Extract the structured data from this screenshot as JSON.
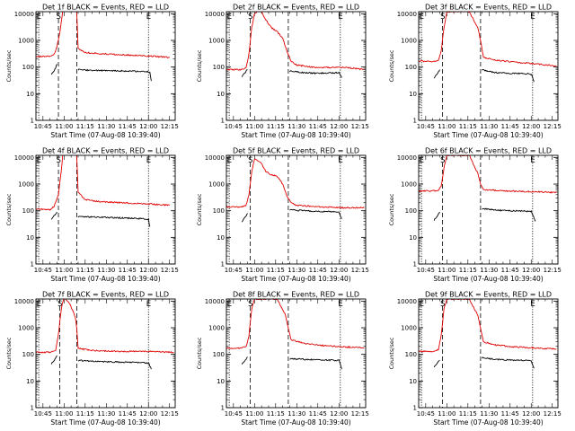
{
  "colors": {
    "events": "#000000",
    "lld": "#e00000",
    "axes": "#000000",
    "background": "#ffffff"
  },
  "chart_data": [
    {
      "type": "line",
      "scale": "log",
      "title": "Det 1f BLACK = Events, RED = LLD",
      "xlabel": "Start Time (07-Aug-08 10:39:40)",
      "ylabel": "Counts/sec",
      "xlim": [
        "10:40",
        "12:19"
      ],
      "ylim": [
        1,
        12000
      ],
      "x_ticks": [
        "10:45",
        "11:00",
        "11:15",
        "11:30",
        "11:45",
        "12:00",
        "12:15"
      ],
      "y_ticks": [
        "1",
        "10",
        "100",
        "1000",
        "10000"
      ],
      "markers": [
        {
          "label": "E",
          "time": "10:42"
        },
        {
          "label": "S",
          "time": "10:56"
        },
        {
          "label": "",
          "time": "11:09"
        },
        {
          "label": "E",
          "time": "12:00"
        }
      ],
      "series": [
        {
          "name": "Events",
          "color": "#000000",
          "x": [
            "10:51",
            "10:53",
            "10:55"
          ],
          "y": [
            55,
            70,
            130
          ]
        },
        {
          "name": "Events",
          "color": "#000000",
          "x": [
            "11:10",
            "11:20",
            "11:35",
            "11:50",
            "12:01",
            "12:02"
          ],
          "y": [
            80,
            75,
            72,
            70,
            65,
            30
          ]
        },
        {
          "name": "LLD",
          "color": "#e00000",
          "x": [
            "10:40",
            "10:51",
            "10:53",
            "10:55",
            "10:57",
            "10:59"
          ],
          "y": [
            250,
            250,
            300,
            600,
            2000,
            12000
          ]
        },
        {
          "name": "LLD",
          "color": "#e00000",
          "x": [
            "11:09",
            "11:10",
            "11:15",
            "11:25",
            "11:40",
            "12:00",
            "12:15"
          ],
          "y": [
            12000,
            500,
            350,
            320,
            290,
            260,
            230
          ]
        }
      ]
    },
    {
      "type": "line",
      "scale": "log",
      "title": "Det 2f BLACK = Events, RED = LLD",
      "xlabel": "Start Time (07-Aug-08 10:39:40)",
      "ylabel": "Counts/sec",
      "xlim": [
        "10:40",
        "12:19"
      ],
      "ylim": [
        1,
        12000
      ],
      "x_ticks": [
        "10:45",
        "11:00",
        "11:15",
        "11:30",
        "11:45",
        "12:00",
        "12:15"
      ],
      "y_ticks": [
        "1",
        "10",
        "100",
        "1000",
        "10000"
      ],
      "markers": [
        {
          "label": "E",
          "time": "10:42"
        },
        {
          "label": "S",
          "time": "10:57"
        },
        {
          "label": "",
          "time": "11:24"
        },
        {
          "label": "E",
          "time": "12:01"
        }
      ],
      "series": [
        {
          "name": "Events",
          "color": "#000000",
          "x": [
            "10:51",
            "10:53",
            "10:55"
          ],
          "y": [
            45,
            60,
            80
          ]
        },
        {
          "name": "Events",
          "color": "#000000",
          "x": [
            "11:25",
            "11:35",
            "11:45",
            "12:00",
            "12:02"
          ],
          "y": [
            70,
            62,
            58,
            62,
            40
          ]
        },
        {
          "name": "LLD",
          "color": "#e00000",
          "x": [
            "10:40",
            "10:50",
            "10:54",
            "10:56",
            "10:58",
            "11:00",
            "11:04",
            "11:08",
            "11:12",
            "11:16",
            "11:20",
            "11:23",
            "11:26",
            "11:30",
            "11:40",
            "11:50",
            "12:00",
            "12:10",
            "12:18"
          ],
          "y": [
            80,
            80,
            95,
            300,
            3000,
            10000,
            14000,
            6000,
            3000,
            2200,
            1200,
            400,
            160,
            120,
            100,
            95,
            100,
            90,
            80
          ]
        }
      ]
    },
    {
      "type": "line",
      "scale": "log",
      "title": "Det 3f BLACK = Events, RED = LLD",
      "xlabel": "Start Time (07-Aug-08 10:39:40)",
      "ylabel": "Counts/sec",
      "xlim": [
        "10:40",
        "12:19"
      ],
      "ylim": [
        1,
        12000
      ],
      "x_ticks": [
        "10:45",
        "11:00",
        "11:15",
        "11:30",
        "11:45",
        "12:00",
        "12:15"
      ],
      "y_ticks": [
        "1",
        "10",
        "100",
        "1000",
        "10000"
      ],
      "markers": [
        {
          "label": "E",
          "time": "10:42"
        },
        {
          "label": "S",
          "time": "10:57"
        },
        {
          "label": "",
          "time": "11:24"
        },
        {
          "label": "E",
          "time": "12:01"
        }
      ],
      "series": [
        {
          "name": "Events",
          "color": "#000000",
          "x": [
            "10:51",
            "10:53",
            "10:55"
          ],
          "y": [
            40,
            55,
            80
          ]
        },
        {
          "name": "Events",
          "color": "#000000",
          "x": [
            "11:25",
            "11:35",
            "11:45",
            "12:00",
            "12:02"
          ],
          "y": [
            80,
            62,
            58,
            55,
            28
          ]
        },
        {
          "name": "LLD",
          "color": "#e00000",
          "x": [
            "10:40",
            "10:50",
            "10:54",
            "10:56",
            "10:58",
            "11:00",
            "11:08",
            "11:16",
            "11:22",
            "11:24",
            "11:26",
            "11:35",
            "11:50",
            "12:05",
            "12:18"
          ],
          "y": [
            170,
            160,
            170,
            400,
            3000,
            12000,
            12000,
            12000,
            3000,
            1000,
            230,
            180,
            150,
            130,
            110
          ]
        }
      ]
    },
    {
      "type": "line",
      "scale": "log",
      "title": "Det 4f BLACK = Events, RED = LLD",
      "xlabel": "Start Time (07-Aug-08 10:39:40)",
      "ylabel": "Counts/sec",
      "xlim": [
        "10:40",
        "12:19"
      ],
      "ylim": [
        1,
        12000
      ],
      "x_ticks": [
        "10:45",
        "11:00",
        "11:15",
        "11:30",
        "11:45",
        "12:00",
        "12:15"
      ],
      "y_ticks": [
        "1",
        "10",
        "100",
        "1000",
        "10000"
      ],
      "markers": [
        {
          "label": "E",
          "time": "10:42"
        },
        {
          "label": "S",
          "time": "10:56"
        },
        {
          "label": "",
          "time": "11:09"
        },
        {
          "label": "E",
          "time": "12:00"
        }
      ],
      "series": [
        {
          "name": "Events",
          "color": "#000000",
          "x": [
            "10:51",
            "10:53",
            "10:55"
          ],
          "y": [
            50,
            65,
            90
          ]
        },
        {
          "name": "Events",
          "color": "#000000",
          "x": [
            "11:10",
            "11:20",
            "11:35",
            "11:50",
            "12:00",
            "12:01"
          ],
          "y": [
            60,
            58,
            55,
            52,
            48,
            25
          ]
        },
        {
          "name": "LLD",
          "color": "#e00000",
          "x": [
            "10:40",
            "10:50",
            "10:53",
            "10:56",
            "10:58",
            "10:59"
          ],
          "y": [
            120,
            110,
            150,
            400,
            3000,
            12000
          ]
        },
        {
          "name": "LLD",
          "color": "#e00000",
          "x": [
            "11:09",
            "11:10",
            "11:15",
            "11:25",
            "11:40",
            "12:00",
            "12:15"
          ],
          "y": [
            12000,
            500,
            260,
            220,
            200,
            180,
            160
          ]
        }
      ]
    },
    {
      "type": "line",
      "scale": "log",
      "title": "Det 5f BLACK = Events, RED = LLD",
      "xlabel": "Start Time (07-Aug-08 10:39:40)",
      "ylabel": "Counts/sec",
      "xlim": [
        "10:40",
        "12:19"
      ],
      "ylim": [
        1,
        12000
      ],
      "x_ticks": [
        "10:45",
        "11:00",
        "11:15",
        "11:30",
        "11:45",
        "12:00",
        "12:15"
      ],
      "y_ticks": [
        "1",
        "10",
        "100",
        "1000",
        "10000"
      ],
      "markers": [
        {
          "label": "E",
          "time": "10:42"
        },
        {
          "label": "S",
          "time": "10:57"
        },
        {
          "label": "",
          "time": "11:24"
        },
        {
          "label": "E",
          "time": "12:01"
        }
      ],
      "series": [
        {
          "name": "Events",
          "color": "#000000",
          "x": [
            "10:51",
            "10:53",
            "10:55"
          ],
          "y": [
            40,
            55,
            80
          ]
        },
        {
          "name": "Events",
          "color": "#000000",
          "x": [
            "11:25",
            "11:35",
            "11:45",
            "12:00",
            "12:02"
          ],
          "y": [
            110,
            100,
            95,
            90,
            50
          ]
        },
        {
          "name": "LLD",
          "color": "#e00000",
          "x": [
            "10:40",
            "10:50",
            "10:54",
            "10:56",
            "10:58",
            "11:00",
            "11:04",
            "11:08",
            "11:12",
            "11:16",
            "11:20",
            "11:23",
            "11:26",
            "11:30",
            "11:45",
            "12:00",
            "12:18"
          ],
          "y": [
            140,
            140,
            160,
            400,
            3000,
            9000,
            7000,
            3000,
            2200,
            2000,
            1000,
            350,
            200,
            160,
            140,
            130,
            130
          ]
        }
      ]
    },
    {
      "type": "line",
      "scale": "log",
      "title": "Det 6f BLACK = Events, RED = LLD",
      "xlabel": "Start Time (07-Aug-08 10:39:40)",
      "ylabel": "Counts/sec",
      "xlim": [
        "10:40",
        "12:19"
      ],
      "ylim": [
        1,
        12000
      ],
      "x_ticks": [
        "10:45",
        "11:00",
        "11:15",
        "11:30",
        "11:45",
        "12:00",
        "12:15"
      ],
      "y_ticks": [
        "1",
        "10",
        "100",
        "1000",
        "10000"
      ],
      "markers": [
        {
          "label": "E",
          "time": "10:42"
        },
        {
          "label": "S",
          "time": "10:57"
        },
        {
          "label": "",
          "time": "11:24"
        },
        {
          "label": "E",
          "time": "12:01"
        }
      ],
      "series": [
        {
          "name": "Events",
          "color": "#000000",
          "x": [
            "10:51",
            "10:53",
            "10:55"
          ],
          "y": [
            45,
            60,
            90
          ]
        },
        {
          "name": "Events",
          "color": "#000000",
          "x": [
            "11:25",
            "11:35",
            "11:45",
            "12:00",
            "12:03"
          ],
          "y": [
            120,
            105,
            100,
            95,
            40
          ]
        },
        {
          "name": "LLD",
          "color": "#e00000",
          "x": [
            "10:40",
            "10:50",
            "10:54",
            "10:56",
            "10:58",
            "11:00",
            "11:08",
            "11:16",
            "11:22",
            "11:24",
            "11:26",
            "11:40",
            "12:00",
            "12:18"
          ],
          "y": [
            550,
            550,
            600,
            800,
            4000,
            12000,
            12000,
            12000,
            2500,
            1000,
            620,
            560,
            520,
            480
          ]
        }
      ]
    },
    {
      "type": "line",
      "scale": "log",
      "title": "Det 7f BLACK = Events, RED = LLD",
      "xlabel": "Start Time (07-Aug-08 10:39:40)",
      "ylabel": "Counts/sec",
      "xlim": [
        "10:40",
        "12:19"
      ],
      "ylim": [
        1,
        12000
      ],
      "x_ticks": [
        "10:45",
        "11:00",
        "11:15",
        "11:30",
        "11:45",
        "12:00",
        "12:15"
      ],
      "y_ticks": [
        "1",
        "10",
        "100",
        "1000",
        "10000"
      ],
      "markers": [
        {
          "label": "E",
          "time": "10:42"
        },
        {
          "label": "S",
          "time": "10:57"
        },
        {
          "label": "",
          "time": "11:09"
        },
        {
          "label": "E",
          "time": "12:00"
        }
      ],
      "series": [
        {
          "name": "Events",
          "color": "#000000",
          "x": [
            "10:51",
            "10:53",
            "10:55"
          ],
          "y": [
            45,
            60,
            90
          ]
        },
        {
          "name": "Events",
          "color": "#000000",
          "x": [
            "11:10",
            "11:20",
            "11:35",
            "11:50",
            "12:00",
            "12:02"
          ],
          "y": [
            60,
            55,
            52,
            50,
            48,
            28
          ]
        },
        {
          "name": "LLD",
          "color": "#e00000",
          "x": [
            "10:40",
            "10:50",
            "10:54",
            "10:56",
            "10:58",
            "11:00",
            "11:04",
            "11:08",
            "11:09",
            "11:10",
            "11:20",
            "11:40",
            "12:00",
            "12:18"
          ],
          "y": [
            120,
            120,
            140,
            600,
            5000,
            14000,
            8000,
            2500,
            1000,
            170,
            140,
            130,
            130,
            120
          ]
        }
      ]
    },
    {
      "type": "line",
      "scale": "log",
      "title": "Det 8f BLACK = Events, RED = LLD",
      "xlabel": "Start Time (07-Aug-08 10:39:40)",
      "ylabel": "Counts/sec",
      "xlim": [
        "10:40",
        "12:19"
      ],
      "ylim": [
        1,
        12000
      ],
      "x_ticks": [
        "10:45",
        "11:00",
        "11:15",
        "11:30",
        "11:45",
        "12:00",
        "12:15"
      ],
      "y_ticks": [
        "1",
        "10",
        "100",
        "1000",
        "10000"
      ],
      "markers": [
        {
          "label": "E",
          "time": "10:42"
        },
        {
          "label": "S",
          "time": "10:57"
        },
        {
          "label": "",
          "time": "11:24"
        },
        {
          "label": "E",
          "time": "12:01"
        }
      ],
      "series": [
        {
          "name": "Events",
          "color": "#000000",
          "x": [
            "10:51",
            "10:53",
            "10:55"
          ],
          "y": [
            45,
            55,
            80
          ]
        },
        {
          "name": "Events",
          "color": "#000000",
          "x": [
            "11:25",
            "11:35",
            "11:45",
            "12:00",
            "12:02"
          ],
          "y": [
            70,
            65,
            62,
            60,
            28
          ]
        },
        {
          "name": "LLD",
          "color": "#e00000",
          "x": [
            "10:40",
            "10:50",
            "10:54",
            "10:56",
            "10:58",
            "11:00",
            "11:08",
            "11:16",
            "11:22",
            "11:24",
            "11:26",
            "11:35",
            "11:50",
            "12:05",
            "12:18"
          ],
          "y": [
            170,
            170,
            190,
            500,
            5000,
            12000,
            12000,
            12000,
            3000,
            1000,
            350,
            260,
            210,
            190,
            180
          ]
        }
      ]
    },
    {
      "type": "line",
      "scale": "log",
      "title": "Det 9f BLACK = Events, RED = LLD",
      "xlabel": "Start Time (07-Aug-08 10:39:40)",
      "ylabel": "Counts/sec",
      "xlim": [
        "10:40",
        "12:19"
      ],
      "ylim": [
        1,
        12000
      ],
      "x_ticks": [
        "10:45",
        "11:00",
        "11:15",
        "11:30",
        "11:45",
        "12:00",
        "12:15"
      ],
      "y_ticks": [
        "1",
        "10",
        "100",
        "1000",
        "10000"
      ],
      "markers": [
        {
          "label": "E",
          "time": "10:42"
        },
        {
          "label": "S",
          "time": "10:57"
        },
        {
          "label": "",
          "time": "11:24"
        },
        {
          "label": "E",
          "time": "12:01"
        }
      ],
      "series": [
        {
          "name": "Events",
          "color": "#000000",
          "x": [
            "10:51",
            "10:53",
            "10:55"
          ],
          "y": [
            35,
            45,
            60
          ]
        },
        {
          "name": "Events",
          "color": "#000000",
          "x": [
            "11:25",
            "11:35",
            "11:45",
            "12:00",
            "12:02"
          ],
          "y": [
            75,
            65,
            62,
            58,
            30
          ]
        },
        {
          "name": "LLD",
          "color": "#e00000",
          "x": [
            "10:40",
            "10:50",
            "10:54",
            "10:56",
            "10:58",
            "11:00",
            "11:08",
            "11:16",
            "11:22",
            "11:24",
            "11:26",
            "11:35",
            "11:50",
            "12:05",
            "12:18"
          ],
          "y": [
            130,
            130,
            150,
            500,
            5000,
            12000,
            12000,
            12000,
            3000,
            1000,
            300,
            220,
            190,
            170,
            160
          ]
        }
      ]
    }
  ]
}
